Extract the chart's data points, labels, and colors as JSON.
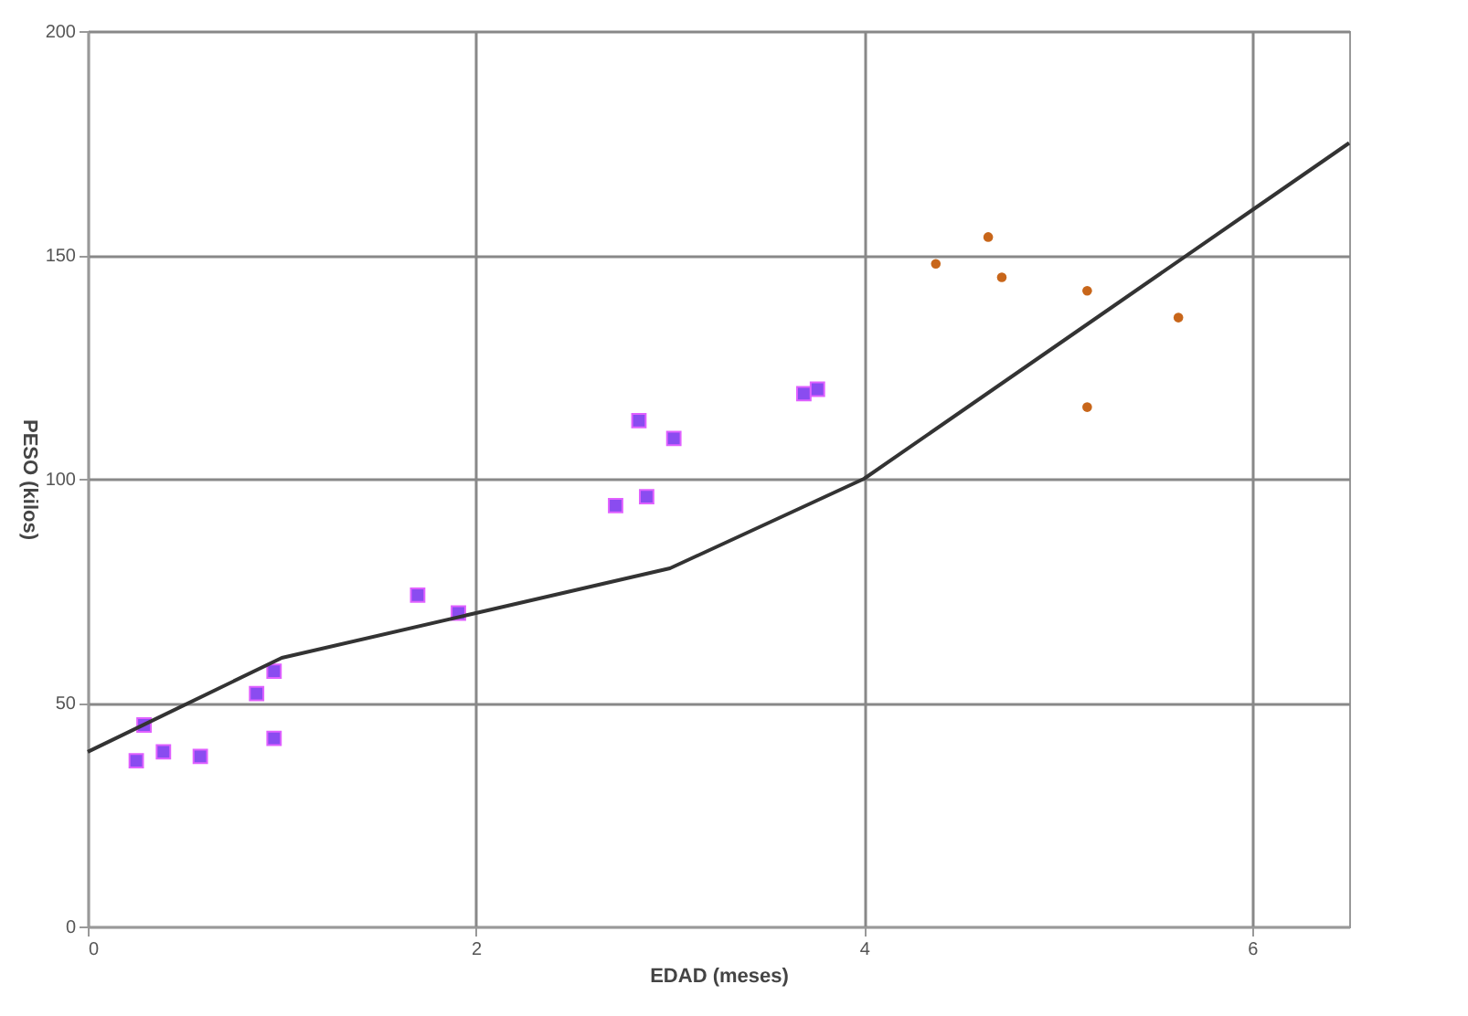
{
  "chart_data": {
    "type": "scatter",
    "xlabel": "EDAD (meses)",
    "ylabel": "PESO (kilos)",
    "xlim": [
      0,
      6.5
    ],
    "xticks": [
      0,
      2,
      4,
      6
    ],
    "ylim": [
      0,
      200
    ],
    "yticks": [
      0,
      50,
      100,
      150,
      200
    ],
    "grid": true,
    "series": [
      {
        "marker": "square",
        "color": "#8a4cf0",
        "x": [
          0.25,
          0.29,
          0.39,
          0.58,
          0.87,
          0.96,
          0.96,
          1.7,
          1.91,
          2.72,
          2.84,
          2.88,
          3.02,
          3.69,
          3.76
        ],
        "values": [
          37,
          45,
          39,
          38,
          52,
          57,
          42,
          74,
          70,
          94,
          113,
          96,
          109,
          119,
          120
        ]
      },
      {
        "marker": "circle",
        "color": "#c8661a",
        "x": [
          4.37,
          4.64,
          4.71,
          5.15,
          5.15,
          5.62
        ],
        "values": [
          148,
          154,
          145,
          142,
          116,
          136
        ]
      },
      {
        "type": "line",
        "marker": "none",
        "color": "#333333",
        "x": [
          0,
          1,
          2,
          3,
          4,
          5,
          6,
          6.5
        ],
        "values": [
          39,
          60,
          70,
          80,
          100,
          130,
          160,
          175
        ]
      }
    ]
  }
}
